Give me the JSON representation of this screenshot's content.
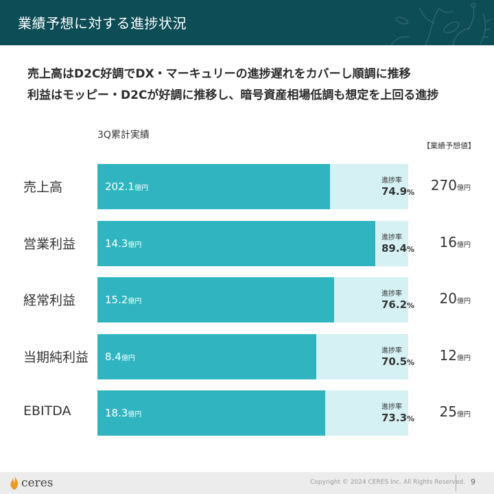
{
  "header": {
    "title": "業績予想に対する進捗状況"
  },
  "headline": {
    "line1": "売上高はD2C好調でDX・マーキュリーの進捗遅れをカバーし順調に推移",
    "line2": "利益はモッピー・D2Cが好調に推移し、暗号資産相場低調も想定を上回る進捗"
  },
  "chart_data": {
    "type": "bar",
    "orientation": "horizontal",
    "section_label": "3Q累計実績",
    "forecast_header": "【業績予想値】",
    "rate_label": "進捗率",
    "unit": "億円",
    "categories": [
      "売上高",
      "営業利益",
      "経常利益",
      "当期純利益",
      "EBITDA"
    ],
    "series": [
      {
        "name": "3Q累計実績",
        "values": [
          202.1,
          14.3,
          15.2,
          8.4,
          18.3
        ]
      },
      {
        "name": "業績予想値",
        "values": [
          270,
          16,
          20,
          12,
          25
        ]
      }
    ],
    "progress_rate": [
      74.9,
      89.4,
      76.2,
      70.5,
      73.3
    ],
    "actual_labels": [
      "202.1",
      "14.3",
      "15.2",
      "8.4",
      "18.3"
    ],
    "forecast_labels": [
      "270",
      "16",
      "20",
      "12",
      "25"
    ],
    "rate_labels": [
      "74.9",
      "89.4",
      "76.2",
      "70.5",
      "73.3"
    ],
    "colors": {
      "actual": "#30b5c0",
      "remaining": "#d6f1f3"
    }
  },
  "footer": {
    "logo_text": "ceres",
    "copyright": "Copyright © 2024 CERES Inc. All Rights Reserved.",
    "page_number": "9"
  },
  "colors": {
    "header_bg": "#0d4d56",
    "footer_bg": "#ececec"
  }
}
